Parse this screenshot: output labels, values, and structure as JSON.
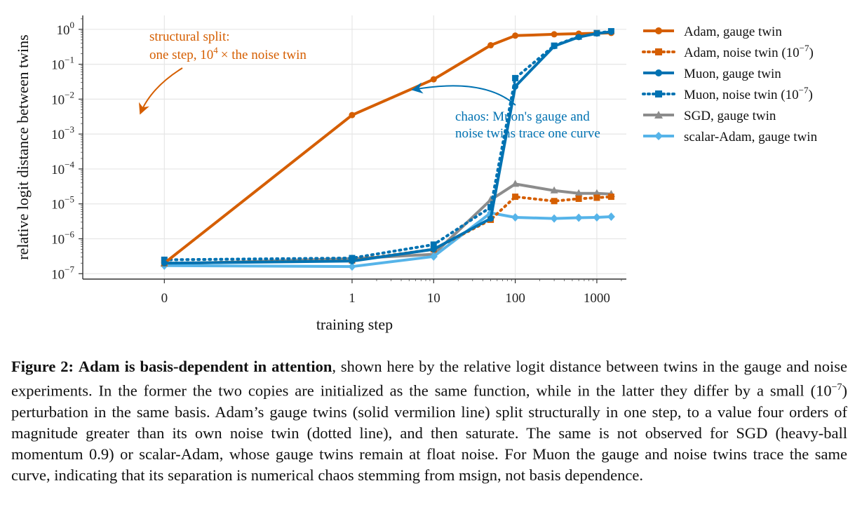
{
  "chart_data": {
    "type": "line",
    "xlabel": "training step",
    "ylabel": "relative logit distance between twins",
    "x_scale": "symlog",
    "y_scale": "log",
    "xlim": [
      -0.05,
      2300
    ],
    "ylim": [
      7e-08,
      2.5
    ],
    "x_ticks": [
      {
        "value": 0,
        "label": "0"
      },
      {
        "value": 1,
        "label": "1"
      },
      {
        "value": 10,
        "label": "10"
      },
      {
        "value": 100,
        "label": "100"
      },
      {
        "value": 1000,
        "label": "1000"
      }
    ],
    "y_ticks": [
      {
        "exp": 0,
        "base": "10",
        "sup": "0"
      },
      {
        "exp": -1,
        "base": "10",
        "sup": "−1"
      },
      {
        "exp": -2,
        "base": "10",
        "sup": "−2"
      },
      {
        "exp": -3,
        "base": "10",
        "sup": "−3"
      },
      {
        "exp": -4,
        "base": "10",
        "sup": "−4"
      },
      {
        "exp": -5,
        "base": "10",
        "sup": "−5"
      },
      {
        "exp": -6,
        "base": "10",
        "sup": "−6"
      },
      {
        "exp": -7,
        "base": "10",
        "sup": "−7"
      }
    ],
    "grid": true,
    "legend_position": "right",
    "series": [
      {
        "name": "Adam, gauge twin",
        "color": "#d55e00",
        "dash": "solid",
        "marker": "circle",
        "x": [
          0,
          1,
          10,
          50,
          100,
          300,
          600,
          1000,
          1500
        ],
        "y": [
          2e-07,
          0.0035,
          0.037,
          0.35,
          0.66,
          0.72,
          0.75,
          0.77,
          0.79
        ]
      },
      {
        "name": "Adam, noise twin (10⁻⁷)",
        "color": "#d55e00",
        "dash": "dotted",
        "marker": "square",
        "x": [
          0,
          1,
          10,
          50,
          100,
          300,
          600,
          1000,
          1500
        ],
        "y": [
          2e-07,
          2.4e-07,
          5e-07,
          3.5e-06,
          1.6e-05,
          1.2e-05,
          1.4e-05,
          1.5e-05,
          1.6e-05
        ]
      },
      {
        "name": "Muon, gauge twin",
        "color": "#0072b2",
        "dash": "solid",
        "marker": "circle",
        "x": [
          0,
          1,
          10,
          50,
          100,
          300,
          600,
          1000,
          1500
        ],
        "y": [
          2e-07,
          2.3e-07,
          5e-07,
          3.8e-06,
          0.023,
          0.33,
          0.6,
          0.76,
          0.85
        ]
      },
      {
        "name": "Muon, noise twin (10⁻⁷)",
        "color": "#0072b2",
        "dash": "dotted",
        "marker": "square",
        "x": [
          0,
          1,
          10,
          50,
          100,
          300,
          600,
          1000,
          1500
        ],
        "y": [
          2.5e-07,
          2.8e-07,
          6.8e-07,
          8e-06,
          0.04,
          0.34,
          0.62,
          0.78,
          0.88
        ]
      },
      {
        "name": "SGD, gauge twin",
        "color": "#8c8c8c",
        "dash": "solid",
        "marker": "triangle",
        "x": [
          0,
          1,
          10,
          50,
          100,
          300,
          600,
          1000,
          1500
        ],
        "y": [
          1.9e-07,
          2.7e-07,
          3.6e-07,
          1.3e-05,
          3.7e-05,
          2.4e-05,
          2e-05,
          2e-05,
          1.9e-05
        ]
      },
      {
        "name": "scalar-Adam, gauge twin",
        "color": "#56b4e9",
        "dash": "solid",
        "marker": "diamond",
        "x": [
          0,
          1,
          10,
          50,
          100,
          300,
          600,
          1000,
          1500
        ],
        "y": [
          1.7e-07,
          1.6e-07,
          3.1e-07,
          5.5e-06,
          4.1e-06,
          3.8e-06,
          4e-06,
          4.1e-06,
          4.3e-06
        ]
      }
    ],
    "annotations": [
      {
        "id": "adam",
        "color": "#d55e00",
        "lines": [
          "structural split:",
          "one step, 10^4× the noise twin"
        ],
        "points_to": {
          "x": 1,
          "y": 0.0035
        }
      },
      {
        "id": "muon",
        "color": "#0072b2",
        "lines": [
          "chaos: Muon's gauge and",
          "noise twins trace one curve"
        ],
        "points_to": {
          "x": 100,
          "y": 0.023
        }
      }
    ]
  },
  "annotation_text": {
    "adam_line1": "structural split:",
    "adam_line2_prefix": "one step, 10",
    "adam_line2_sup": "4",
    "adam_line2_suffix": "× the noise twin",
    "muon_line1": "chaos: Muon's gauge and",
    "muon_line2": "noise twins trace one curve"
  },
  "legend_parts": {
    "adam_noise_prefix": "Adam, noise twin (10",
    "muon_noise_prefix": "Muon, noise twin (10",
    "sup": "−7",
    "close": ")"
  },
  "caption": {
    "label": "Figure 2:",
    "title": "Adam is basis-dependent in attention",
    "body_1": ", shown here by the relative logit distance between twins in the gauge and noise experiments. In the former the two copies are initialized as the same function, while in the latter they differ by a small (10",
    "body_sup": "−7",
    "body_2": ") perturbation in the same basis. Adam’s gauge twins (solid vermilion line) split structurally in one step, to a value four orders of magnitude greater than its own noise twin (dotted line), and then saturate. The same is not observed for SGD (heavy-ball momentum 0.9) or scalar-Adam, whose gauge twins remain at float noise. For Muon the gauge and noise twins trace the same curve, indicating that its separation is numerical chaos stemming from msign, not basis dependence."
  }
}
